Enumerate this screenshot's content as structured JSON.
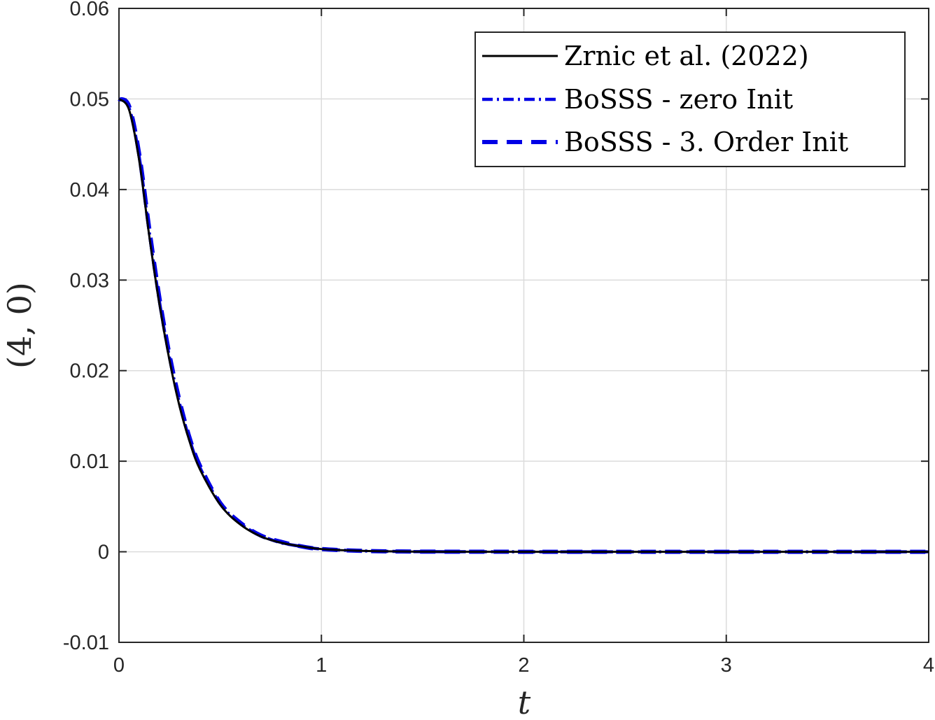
{
  "chart_data": {
    "type": "line",
    "xlabel": "t",
    "ylabel": "(4, 0)",
    "xlim": [
      0,
      4
    ],
    "ylim": [
      -0.01,
      0.06
    ],
    "x_ticks": [
      0,
      1,
      2,
      3,
      4
    ],
    "x_tick_labels": [
      "0",
      "1",
      "2",
      "3",
      "4"
    ],
    "y_ticks": [
      -0.01,
      0,
      0.01,
      0.02,
      0.03,
      0.04,
      0.05,
      0.06
    ],
    "y_tick_labels": [
      "-0.01",
      "0",
      "0.01",
      "0.02",
      "0.03",
      "0.04",
      "0.05",
      "0.06"
    ],
    "grid": true,
    "legend_position": "top-right",
    "x": [
      0,
      0.05,
      0.1,
      0.15,
      0.2,
      0.25,
      0.3,
      0.35,
      0.4,
      0.5,
      0.6,
      0.7,
      0.8,
      0.9,
      1.0,
      1.2,
      1.4,
      1.6,
      2.0,
      2.5,
      3.0,
      3.5,
      4.0
    ],
    "series": [
      {
        "name": "Zrnic et al. (2022)",
        "color": "#000000",
        "style": "solid",
        "values": [
          0.05,
          0.0488,
          0.0432,
          0.0348,
          0.0273,
          0.0211,
          0.016,
          0.0121,
          0.0091,
          0.0052,
          0.003,
          0.0017,
          0.001,
          0.0006,
          0.0003,
          0.0001,
          3e-05,
          1e-05,
          0,
          0,
          0,
          0,
          0
        ]
      },
      {
        "name": "BoSSS - zero Init",
        "color": "#0000e6",
        "style": "dashdot",
        "values": [
          0.05,
          0.049,
          0.0436,
          0.0352,
          0.0276,
          0.0214,
          0.0163,
          0.0123,
          0.0093,
          0.0053,
          0.0031,
          0.0018,
          0.001,
          0.0006,
          0.0003,
          0.0001,
          3e-05,
          1e-05,
          0,
          0,
          0,
          0,
          0
        ]
      },
      {
        "name": "BoSSS - 3. Order Init",
        "color": "#0000e6",
        "style": "dashed",
        "values": [
          0.05,
          0.0492,
          0.0439,
          0.0356,
          0.028,
          0.0217,
          0.0166,
          0.0125,
          0.0095,
          0.0054,
          0.0032,
          0.0018,
          0.0011,
          0.0006,
          0.0003,
          0.0001,
          3e-05,
          1e-05,
          0,
          0,
          0,
          0,
          0
        ]
      }
    ]
  }
}
